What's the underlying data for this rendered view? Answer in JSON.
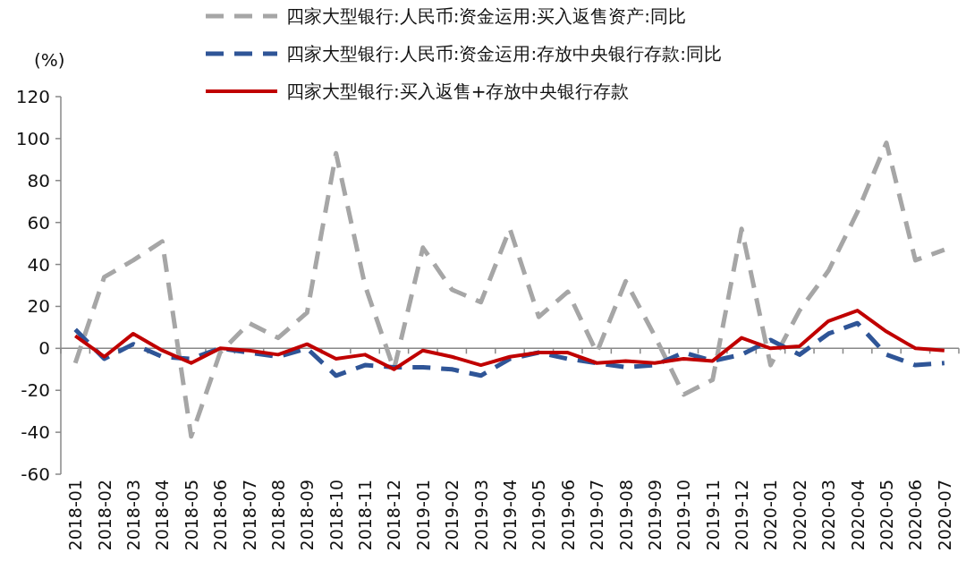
{
  "chart_data": {
    "type": "line",
    "ylabel": "(%)",
    "categories": [
      "2018-01",
      "2018-02",
      "2018-03",
      "2018-04",
      "2018-05",
      "2018-06",
      "2018-07",
      "2018-08",
      "2018-09",
      "2018-10",
      "2018-11",
      "2018-12",
      "2019-01",
      "2019-02",
      "2019-03",
      "2019-04",
      "2019-05",
      "2019-06",
      "2019-07",
      "2019-08",
      "2019-09",
      "2019-10",
      "2019-11",
      "2019-12",
      "2020-01",
      "2020-02",
      "2020-03",
      "2020-04",
      "2020-05",
      "2020-06",
      "2020-07"
    ],
    "ylim": [
      -60,
      120
    ],
    "yticks": [
      -60,
      -40,
      -20,
      0,
      20,
      40,
      60,
      80,
      100,
      120
    ],
    "legend": "top",
    "marker": "none",
    "series": [
      {
        "name": "四家大型银行:人民币:资金运用:买入返售资产:同比",
        "color": "#a6a6a6",
        "line_style": "dashed",
        "values": [
          -7,
          34,
          42,
          51,
          -42,
          -2,
          12,
          5,
          17,
          93,
          30,
          -10,
          48,
          28,
          22,
          57,
          15,
          27,
          -2,
          32,
          6,
          -22,
          -15,
          57,
          -8,
          18,
          37,
          65,
          98,
          42,
          47
        ]
      },
      {
        "name": "四家大型银行:人民币:资金运用:存放中央银行存款:同比",
        "color": "#2f5597",
        "line_style": "dashed",
        "values": [
          9,
          -5,
          2,
          -4,
          -5,
          0,
          -2,
          -4,
          0,
          -13,
          -8,
          -9,
          -9,
          -10,
          -13,
          -5,
          -2,
          -5,
          -7,
          -9,
          -8,
          -2,
          -6,
          -3,
          4,
          -3,
          7,
          12,
          -3,
          -8,
          -7
        ]
      },
      {
        "name": "四家大型银行:买入返售+存放中央银行存款",
        "color": "#c00000",
        "line_style": "solid",
        "values": [
          6,
          -4,
          7,
          -1,
          -7,
          0,
          -1,
          -3,
          2,
          -5,
          -3,
          -10,
          -1,
          -4,
          -8,
          -4,
          -2,
          -2,
          -7,
          -6,
          -7,
          -5,
          -6,
          5,
          0,
          1,
          13,
          18,
          8,
          0,
          -1
        ]
      }
    ]
  }
}
